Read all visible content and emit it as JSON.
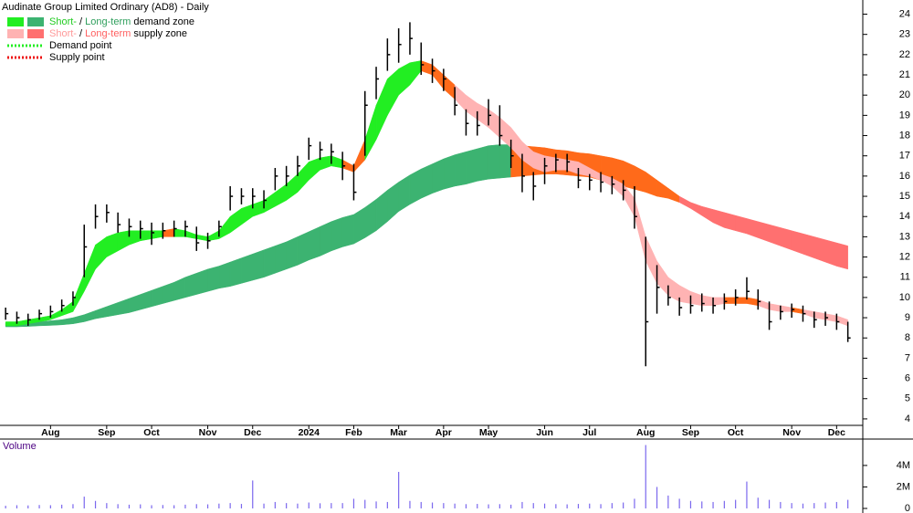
{
  "chart_data": [
    {
      "type": "ohlc",
      "title": "Audinate Group Limited Ordinary (AD8) - Daily",
      "color": "#000000",
      "categories": [
        null,
        null,
        null,
        null,
        "Aug",
        null,
        null,
        null,
        null,
        "Sep",
        null,
        null,
        null,
        "Oct",
        null,
        null,
        null,
        null,
        "Nov",
        null,
        null,
        null,
        "Dec",
        null,
        null,
        null,
        null,
        "2024",
        null,
        null,
        null,
        "Feb",
        null,
        null,
        null,
        "Mar",
        null,
        null,
        null,
        "Apr",
        null,
        null,
        null,
        "May",
        null,
        null,
        null,
        null,
        "Jun",
        null,
        null,
        null,
        "Jul",
        null,
        null,
        null,
        null,
        "Aug",
        null,
        null,
        null,
        "Sep",
        null,
        null,
        null,
        "Oct",
        null,
        null,
        null,
        null,
        "Nov",
        null,
        null,
        null,
        "Dec",
        null
      ],
      "high": [
        9.5,
        9.3,
        9.2,
        9.4,
        9.6,
        9.9,
        10.3,
        13.6,
        14.6,
        14.6,
        14.2,
        13.9,
        13.8,
        13.7,
        13.7,
        13.8,
        13.8,
        13.5,
        13.2,
        13.8,
        15.5,
        15.4,
        15.4,
        15.3,
        16.4,
        16.5,
        17.0,
        17.9,
        17.7,
        17.6,
        17.2,
        16.6,
        20.2,
        21.4,
        22.8,
        23.3,
        23.6,
        22.6,
        21.8,
        21.3,
        20.4,
        19.3,
        19.2,
        19.8,
        19.5,
        17.8,
        17.1,
        16.2,
        16.9,
        17.1,
        17.1,
        16.4,
        16.1,
        16.2,
        16.0,
        15.8,
        15.5,
        13.0,
        11.6,
        10.6,
        10.0,
        10.1,
        10.2,
        10.0,
        10.2,
        10.4,
        11.0,
        10.4,
        9.8,
        9.6,
        9.7,
        9.6,
        9.3,
        9.3,
        9.2,
        8.8
      ],
      "low": [
        8.9,
        8.7,
        8.6,
        8.9,
        9.0,
        9.3,
        9.6,
        11.0,
        13.4,
        13.7,
        13.2,
        13.0,
        12.9,
        12.6,
        12.9,
        13.0,
        13.0,
        12.3,
        12.4,
        13.0,
        14.3,
        14.6,
        14.4,
        14.4,
        15.3,
        15.5,
        16.0,
        16.8,
        16.8,
        16.6,
        15.8,
        14.8,
        17.0,
        19.8,
        21.2,
        21.6,
        22.0,
        21.0,
        20.6,
        20.2,
        19.0,
        18.0,
        18.0,
        18.5,
        17.5,
        16.4,
        15.2,
        14.8,
        15.6,
        16.2,
        16.2,
        15.4,
        15.3,
        15.2,
        15.1,
        14.8,
        13.4,
        6.6,
        9.2,
        9.6,
        9.1,
        9.2,
        9.3,
        9.2,
        9.4,
        9.6,
        9.9,
        9.4,
        8.4,
        8.9,
        9.0,
        8.8,
        8.5,
        8.6,
        8.4,
        7.8
      ],
      "close": [
        9.2,
        9.0,
        8.9,
        9.2,
        9.3,
        9.6,
        10.0,
        12.5,
        14.0,
        14.2,
        13.6,
        13.5,
        13.4,
        13.2,
        13.3,
        13.4,
        13.5,
        12.7,
        12.8,
        13.5,
        15.0,
        15.0,
        15.0,
        14.8,
        16.0,
        16.0,
        16.5,
        17.5,
        17.3,
        17.2,
        16.5,
        15.2,
        19.5,
        20.8,
        22.0,
        22.5,
        22.8,
        21.5,
        21.2,
        20.8,
        19.5,
        18.6,
        18.5,
        19.0,
        18.0,
        17.0,
        16.0,
        15.5,
        16.5,
        16.8,
        16.7,
        15.8,
        15.8,
        15.7,
        15.6,
        15.3,
        14.0,
        8.8,
        10.5,
        10.0,
        9.5,
        9.6,
        9.7,
        9.6,
        9.8,
        10.0,
        10.3,
        9.8,
        8.8,
        9.3,
        9.4,
        9.2,
        8.9,
        9.0,
        8.8,
        8.0
      ],
      "zones": [
        {
          "upper": [
            8.75,
            8.75,
            8.78,
            8.8,
            8.85,
            8.9,
            9.0,
            9.15,
            9.35,
            9.55,
            9.75,
            9.95,
            10.15,
            10.35,
            10.55,
            10.75,
            11.0,
            11.2,
            11.4,
            11.55,
            11.75,
            11.95,
            12.15,
            12.35,
            12.55,
            12.75,
            13.0,
            13.25,
            13.5,
            13.75,
            13.95,
            14.1,
            14.45,
            14.85,
            15.3,
            15.7,
            16.05,
            16.35,
            16.6,
            16.85,
            17.05,
            17.2,
            17.35,
            17.5,
            17.55,
            17.55,
            17.5,
            17.45,
            17.4,
            17.3,
            17.25,
            17.15,
            17.1,
            17.0,
            16.9,
            16.75,
            16.5,
            16.2,
            15.8,
            15.4,
            15.0,
            14.7,
            14.5,
            14.35,
            14.2,
            14.05,
            13.9,
            13.75,
            13.6,
            13.45,
            13.3,
            13.15,
            13.0,
            12.85,
            12.7,
            12.55
          ],
          "lower": [
            8.55,
            8.55,
            8.57,
            8.6,
            8.62,
            8.65,
            8.7,
            8.8,
            8.95,
            9.05,
            9.15,
            9.25,
            9.4,
            9.55,
            9.7,
            9.85,
            10.0,
            10.15,
            10.3,
            10.45,
            10.55,
            10.7,
            10.85,
            11.0,
            11.2,
            11.4,
            11.6,
            11.85,
            12.05,
            12.3,
            12.5,
            12.65,
            12.95,
            13.3,
            13.75,
            14.25,
            14.6,
            14.9,
            15.15,
            15.35,
            15.5,
            15.6,
            15.75,
            15.85,
            15.9,
            15.95,
            16.0,
            16.05,
            16.1,
            16.1,
            16.05,
            16.0,
            15.95,
            15.8,
            15.65,
            15.5,
            15.35,
            15.2,
            15.0,
            14.9,
            14.7,
            14.4,
            14.05,
            13.7,
            13.45,
            13.3,
            13.15,
            12.95,
            12.75,
            12.55,
            12.35,
            12.15,
            11.95,
            11.75,
            11.55,
            11.4
          ],
          "colors": [
            "#3cb371",
            "#3cb371",
            "#3cb371",
            "#3cb371",
            "#3cb371",
            "#3cb371",
            "#3cb371",
            "#3cb371",
            "#3cb371",
            "#3cb371",
            "#3cb371",
            "#3cb371",
            "#3cb371",
            "#3cb371",
            "#3cb371",
            "#3cb371",
            "#3cb371",
            "#3cb371",
            "#3cb371",
            "#3cb371",
            "#3cb371",
            "#3cb371",
            "#3cb371",
            "#3cb371",
            "#3cb371",
            "#3cb371",
            "#3cb371",
            "#3cb371",
            "#3cb371",
            "#3cb371",
            "#3cb371",
            "#3cb371",
            "#3cb371",
            "#3cb371",
            "#3cb371",
            "#3cb371",
            "#3cb371",
            "#3cb371",
            "#3cb371",
            "#3cb371",
            "#3cb371",
            "#3cb371",
            "#3cb371",
            "#3cb371",
            "#3cb371",
            "#ff6a1a",
            "#ff6a1a",
            "#ff6a1a",
            "#ff6a1a",
            "#ff6a1a",
            "#ff6a1a",
            "#ff6a1a",
            "#ff6a1a",
            "#ff6a1a",
            "#ff6a1a",
            "#ff6a1a",
            "#ff6a1a",
            "#ff6a1a",
            "#ff6a1a",
            "#ff6a1a",
            "#ff7070",
            "#ff7070",
            "#ff7070",
            "#ff7070",
            "#ff7070",
            "#ff7070",
            "#ff7070",
            "#ff7070",
            "#ff7070",
            "#ff7070",
            "#ff7070",
            "#ff7070",
            "#ff7070",
            "#ff7070",
            "#ff7070",
            "#ff7070"
          ]
        },
        {
          "upper": [
            8.8,
            8.8,
            8.9,
            9.0,
            9.1,
            9.4,
            9.8,
            11.2,
            12.6,
            13.0,
            13.2,
            13.3,
            13.3,
            13.3,
            13.3,
            13.4,
            13.3,
            13.1,
            13.0,
            13.3,
            14.0,
            14.4,
            14.6,
            14.8,
            15.2,
            15.6,
            16.1,
            16.7,
            16.9,
            17.0,
            16.8,
            16.5,
            17.8,
            19.5,
            20.8,
            21.3,
            21.6,
            21.7,
            21.5,
            21.0,
            20.5,
            20.0,
            19.6,
            19.3,
            18.9,
            18.4,
            17.7,
            17.2,
            17.0,
            16.9,
            16.8,
            16.7,
            16.4,
            16.1,
            15.9,
            15.6,
            14.9,
            13.0,
            11.8,
            11.0,
            10.6,
            10.3,
            10.1,
            10.0,
            10.0,
            10.0,
            10.0,
            9.9,
            9.7,
            9.6,
            9.5,
            9.4,
            9.3,
            9.2,
            9.1,
            8.9
          ],
          "lower": [
            8.6,
            8.6,
            8.7,
            8.8,
            8.9,
            9.1,
            9.3,
            10.3,
            11.4,
            12.0,
            12.3,
            12.6,
            12.8,
            12.9,
            13.0,
            13.0,
            13.0,
            12.9,
            12.8,
            12.9,
            13.2,
            13.6,
            14.0,
            14.2,
            14.5,
            14.8,
            15.2,
            15.8,
            16.3,
            16.5,
            16.4,
            16.2,
            16.8,
            17.8,
            19.0,
            20.0,
            20.5,
            21.2,
            21.0,
            20.3,
            19.8,
            19.2,
            18.8,
            18.4,
            17.9,
            17.4,
            16.8,
            16.4,
            16.2,
            16.3,
            16.3,
            16.1,
            16.0,
            15.8,
            15.5,
            15.0,
            14.0,
            11.8,
            10.7,
            10.1,
            9.8,
            9.7,
            9.6,
            9.6,
            9.7,
            9.7,
            9.7,
            9.6,
            9.4,
            9.3,
            9.3,
            9.2,
            9.0,
            8.9,
            8.8,
            8.6
          ],
          "colors": [
            "#22ee22",
            "#22ee22",
            "#22ee22",
            "#22ee22",
            "#22ee22",
            "#22ee22",
            "#22ee22",
            "#22ee22",
            "#22ee22",
            "#22ee22",
            "#22ee22",
            "#22ee22",
            "#22ee22",
            "#22ee22",
            "#ff6a1a",
            "#22ee22",
            "#22ee22",
            "#22ee22",
            "#22ee22",
            "#22ee22",
            "#22ee22",
            "#22ee22",
            "#22ee22",
            "#22ee22",
            "#22ee22",
            "#22ee22",
            "#22ee22",
            "#22ee22",
            "#22ee22",
            "#22ee22",
            "#ff6a1a",
            "#ff6a1a",
            "#22ee22",
            "#22ee22",
            "#22ee22",
            "#22ee22",
            "#22ee22",
            "#ff6a1a",
            "#ff6a1a",
            "#ff6a1a",
            "#ffb3b3",
            "#ffb3b3",
            "#ffb3b3",
            "#ffb3b3",
            "#ffb3b3",
            "#ffb3b3",
            "#ffb3b3",
            "#ffb3b3",
            "#ffb3b3",
            "#ffb3b3",
            "#ffb3b3",
            "#ffb3b3",
            "#ffb3b3",
            "#ffb3b3",
            "#ffb3b3",
            "#ffb3b3",
            "#ffb3b3",
            "#ffb3b3",
            "#ffb3b3",
            "#ffb3b3",
            "#ffb3b3",
            "#ffb3b3",
            "#ffb3b3",
            "#ffb3b3",
            "#ff6a1a",
            "#ff6a1a",
            "#ff6a1a",
            "#ffb3b3",
            "#ffb3b3",
            "#ffb3b3",
            "#ff6a1a",
            "#ffb3b3",
            "#ffb3b3",
            "#ffb3b3",
            "#ffb3b3",
            "#ffb3b3"
          ]
        }
      ],
      "legend": [
        {
          "swatches": [
            "#22ee22",
            "#3cb371"
          ],
          "parts": [
            {
              "text": "Short-",
              "color": "#22cc22"
            },
            {
              "text": " / ",
              "color": "#000000"
            },
            {
              "text": "Long-term",
              "color": "#2e9e5b"
            },
            {
              "text": " demand zone",
              "color": "#000000"
            }
          ]
        },
        {
          "swatches": [
            "#ffb3b3",
            "#ff7070"
          ],
          "parts": [
            {
              "text": "Short-",
              "color": "#ff9a9a"
            },
            {
              "text": " / ",
              "color": "#000000"
            },
            {
              "text": "Long-term",
              "color": "#ff6060"
            },
            {
              "text": " supply zone",
              "color": "#000000"
            }
          ]
        },
        {
          "dotted": "#22ee22",
          "parts": [
            {
              "text": "Demand point",
              "color": "#000000"
            }
          ]
        },
        {
          "dotted": "#ee1111",
          "parts": [
            {
              "text": "Supply point",
              "color": "#000000"
            }
          ]
        }
      ],
      "ylim": [
        3.5,
        24.7
      ],
      "yticks": [
        4,
        5,
        6,
        7,
        8,
        9,
        10,
        11,
        12,
        13,
        14,
        15,
        16,
        17,
        18,
        19,
        20,
        21,
        22,
        23,
        24
      ]
    },
    {
      "type": "bar",
      "title": "Volume",
      "color": "#7b68ee",
      "values": [
        250000,
        300000,
        280000,
        320000,
        300000,
        350000,
        400000,
        1100000,
        700000,
        500000,
        400000,
        350000,
        380000,
        300000,
        320000,
        300000,
        350000,
        400000,
        380000,
        450000,
        500000,
        420000,
        2600000,
        450000,
        600000,
        500000,
        450000,
        550000,
        480000,
        500000,
        500000,
        900000,
        800000,
        650000,
        600000,
        3400000,
        700000,
        600000,
        550000,
        500000,
        450000,
        400000,
        420000,
        380000,
        400000,
        350000,
        600000,
        500000,
        450000,
        400000,
        380000,
        420000,
        450000,
        400000,
        500000,
        550000,
        900000,
        5900000,
        2000000,
        1200000,
        900000,
        700000,
        650000,
        600000,
        700000,
        800000,
        2500000,
        1000000,
        800000,
        600000,
        500000,
        450000,
        500000,
        550000,
        600000,
        800000
      ],
      "ylim": [
        0,
        6200000
      ],
      "yticks": [
        0,
        {
          "value": 2000000,
          "label": "2M"
        },
        {
          "value": 4000000,
          "label": "4M"
        }
      ]
    }
  ]
}
